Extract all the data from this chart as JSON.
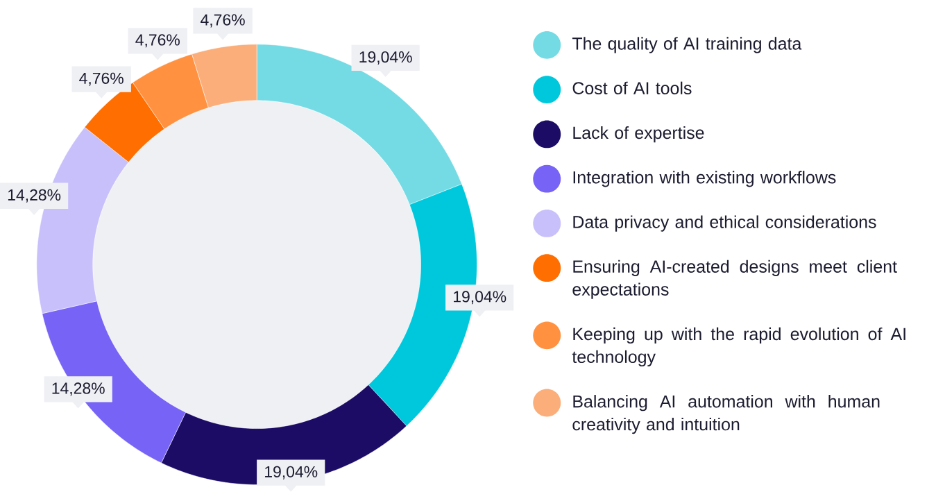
{
  "chart_data": {
    "type": "donut",
    "categories": [
      "The quality of AI training data",
      "Cost of AI tools",
      "Lack of expertise",
      "Integration with existing workflows",
      "Data privacy and ethical considerations",
      "Ensuring AI-created designs meet client expectations",
      "Keeping up with the rapid evolution of AI technology",
      "Balancing AI automation with human creativity and intuition"
    ],
    "values": [
      19.04,
      19.04,
      19.04,
      14.28,
      14.28,
      4.76,
      4.76,
      4.76
    ],
    "colors": [
      "#74dbe4",
      "#00c8dc",
      "#1c0c66",
      "#7763f5",
      "#c8c0fa",
      "#ff6e00",
      "#ff9140",
      "#fbae7a"
    ],
    "value_labels": [
      "19,04%",
      "19,04%",
      "19,04%",
      "14,28%",
      "14,28%",
      "4,76%",
      "4,76%",
      "4,76%"
    ],
    "legend": "right"
  }
}
